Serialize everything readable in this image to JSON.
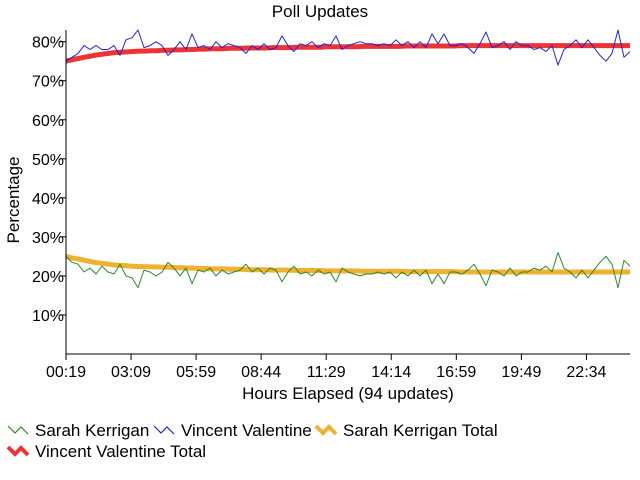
{
  "chart_data": {
    "type": "line",
    "title": "Poll Updates",
    "xlabel": "Hours Elapsed (94 updates)",
    "ylabel": "Percentage",
    "x_tick_labels": [
      "00:19",
      "03:09",
      "05:59",
      "08:44",
      "11:29",
      "14:14",
      "16:59",
      "19:49",
      "22:34"
    ],
    "y_tick_labels": [
      "10%",
      "20%",
      "30%",
      "40%",
      "50%",
      "60%",
      "70%",
      "80%"
    ],
    "y_ticks": [
      10,
      20,
      30,
      40,
      50,
      60,
      70,
      80
    ],
    "ylim": [
      0,
      83
    ],
    "grid": false,
    "legend_position": "bottom",
    "series": [
      {
        "name": "Sarah Kerrigan",
        "color": "#2a8a2a",
        "values": [
          25,
          23.5,
          23,
          21,
          22,
          20.5,
          22.5,
          21,
          20.5,
          23,
          20,
          19.5,
          17,
          21.5,
          21,
          20,
          21,
          23.5,
          22,
          20,
          22,
          18,
          21.5,
          21,
          22,
          20,
          21.5,
          20.5,
          21,
          21.5,
          23,
          21,
          22,
          20.5,
          22,
          21.5,
          18.5,
          21,
          22.5,
          20.5,
          21,
          20,
          21.5,
          20.5,
          21,
          18.5,
          22,
          21,
          20.5,
          20,
          20.5,
          20.5,
          21,
          20.5,
          21,
          19.5,
          21,
          20,
          21.5,
          20,
          21.5,
          18,
          20.5,
          18,
          21,
          21,
          20.5,
          21.5,
          23,
          20.5,
          17.5,
          21.5,
          21,
          20,
          22,
          20,
          21,
          21,
          22,
          21.5,
          22.5,
          21,
          26,
          22,
          21,
          19.5,
          21.5,
          19.5,
          21.5,
          23.5,
          25,
          23,
          17,
          24,
          22.5
        ]
      },
      {
        "name": "Vincent Valentine",
        "color": "#2222dd",
        "values": [
          75,
          76,
          77,
          79,
          78,
          79,
          78,
          78,
          79,
          76.5,
          80.5,
          81,
          83,
          78.5,
          79,
          80,
          79,
          76.5,
          78,
          80,
          78,
          82,
          78.5,
          79,
          78,
          80,
          78.5,
          79.5,
          79,
          78.5,
          77,
          79,
          78,
          79.5,
          78,
          78.5,
          81.5,
          79,
          77.5,
          79.5,
          79,
          80,
          78.5,
          79.5,
          79,
          81.5,
          78,
          79,
          79.5,
          80,
          79.5,
          79.5,
          79,
          79.5,
          79,
          80.5,
          79,
          80,
          78.5,
          80,
          78.5,
          82,
          79.5,
          82,
          79,
          79,
          79.5,
          78.5,
          77,
          79.5,
          82.5,
          78.5,
          79,
          80,
          78,
          80,
          79,
          79,
          78,
          78.5,
          77.5,
          79,
          74,
          78,
          79,
          80.5,
          78.5,
          80.5,
          78.5,
          76.5,
          75,
          77,
          83,
          76,
          77.5
        ]
      },
      {
        "name": "Sarah Kerrigan Total",
        "color": "#f0b030",
        "values": [
          25,
          24.6,
          24.3,
          24,
          23.7,
          23.4,
          23.2,
          23,
          22.8,
          22.7,
          22.6,
          22.5,
          22.4,
          22.4,
          22.3,
          22.3,
          22.2,
          22.2,
          22.1,
          22.1,
          22,
          22,
          21.9,
          21.9,
          21.8,
          21.8,
          21.8,
          21.7,
          21.7,
          21.7,
          21.6,
          21.6,
          21.6,
          21.6,
          21.5,
          21.5,
          21.5,
          21.5,
          21.4,
          21.4,
          21.4,
          21.4,
          21.4,
          21.3,
          21.3,
          21.3,
          21.3,
          21.3,
          21.3,
          21.2,
          21.2,
          21.2,
          21.2,
          21.2,
          21.2,
          21.2,
          21.1,
          21.1,
          21.1,
          21.1,
          21.1,
          21.1,
          21.1,
          21.1,
          21.1,
          21,
          21,
          21,
          21,
          21,
          21,
          21,
          21,
          21,
          21,
          21,
          21,
          21,
          21,
          21,
          21,
          21,
          21,
          21,
          21,
          21,
          21,
          21,
          21,
          21,
          21,
          21,
          21,
          21
        ]
      },
      {
        "name": "Vincent Valentine Total",
        "color": "#ee3333",
        "values": [
          75,
          75.4,
          75.7,
          76,
          76.3,
          76.6,
          76.8,
          77,
          77.2,
          77.3,
          77.4,
          77.5,
          77.6,
          77.6,
          77.7,
          77.7,
          77.8,
          77.8,
          77.9,
          77.9,
          78,
          78,
          78.1,
          78.1,
          78.2,
          78.2,
          78.2,
          78.3,
          78.3,
          78.3,
          78.4,
          78.4,
          78.4,
          78.4,
          78.5,
          78.5,
          78.5,
          78.5,
          78.6,
          78.6,
          78.6,
          78.6,
          78.6,
          78.7,
          78.7,
          78.7,
          78.7,
          78.7,
          78.7,
          78.8,
          78.8,
          78.8,
          78.8,
          78.8,
          78.8,
          78.8,
          78.9,
          78.9,
          78.9,
          78.9,
          78.9,
          78.9,
          78.9,
          78.9,
          78.9,
          79,
          79,
          79,
          79,
          79,
          79,
          79,
          79,
          79,
          79,
          79,
          79,
          79,
          79,
          79,
          79,
          79,
          79,
          79,
          79,
          79,
          79,
          79,
          79,
          79,
          79,
          79,
          79,
          79
        ]
      }
    ]
  }
}
